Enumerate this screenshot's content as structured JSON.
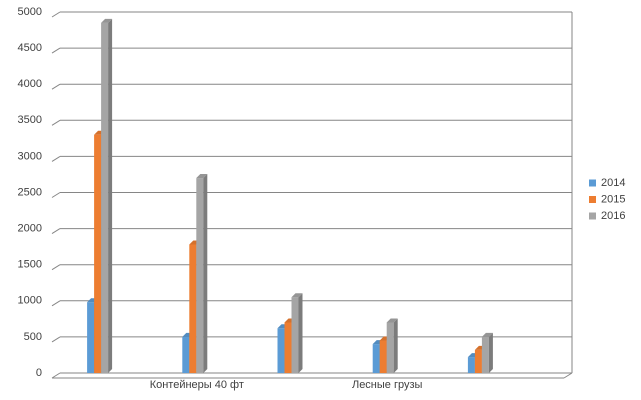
{
  "chart_data": {
    "type": "bar",
    "categories": [
      null,
      "Контейнеры 40 фт",
      null,
      "Лесные грузы",
      null
    ],
    "series": [
      {
        "name": "2014",
        "color": "#5b9bd5",
        "values": [
          980,
          500,
          620,
          400,
          220
        ]
      },
      {
        "name": "2015",
        "color": "#ed7d31",
        "values": [
          3300,
          1780,
          700,
          450,
          320
        ]
      },
      {
        "name": "2016",
        "color": "#a5a5a5",
        "values": [
          4850,
          2700,
          1050,
          700,
          500
        ]
      }
    ],
    "ylim": [
      0,
      5000
    ],
    "yticks": [
      0,
      500,
      1000,
      1500,
      2000,
      2500,
      3000,
      3500,
      4000,
      4500,
      5000
    ],
    "grid": true,
    "legend": "right"
  }
}
